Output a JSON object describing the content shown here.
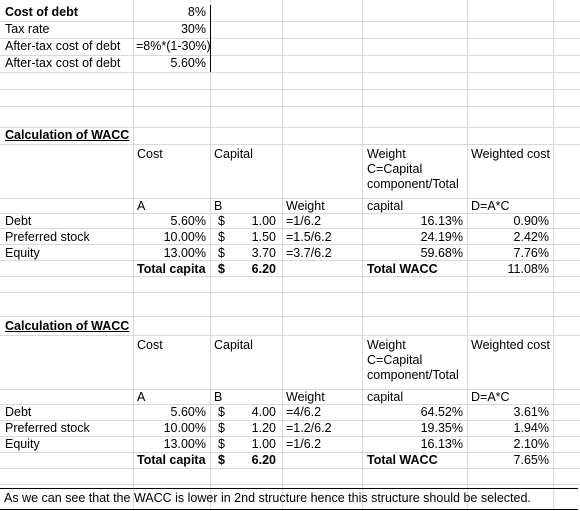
{
  "top": {
    "cost_of_debt_label": "Cost of debt",
    "cost_of_debt_value": "8%",
    "tax_rate_label": "Tax rate",
    "tax_rate_value": "30%",
    "after_tax_formula_label": "After-tax cost of debt",
    "after_tax_formula_value": "=8%*(1-30%)",
    "after_tax_label": "After-tax cost of debt",
    "after_tax_value": "5.60%"
  },
  "sections": [
    {
      "title": "Calculation of WACC",
      "h_cost": "Cost",
      "h_capital": "Capital",
      "h_weight1": "Weight",
      "h_weight2": "C=Capital",
      "h_weight3": "component/Total",
      "h_weight4": "capital",
      "h_weighted_cost": "Weighted cost",
      "h_a": "A",
      "h_b": "B",
      "h_weight_col": "Weight",
      "h_dac": "D=A*C",
      "rows": [
        {
          "label": "Debt",
          "cost": "5.60%",
          "cur": "$",
          "capital": "1.00",
          "formula": "=1/6.2",
          "weight": "16.13%",
          "wcost": "0.90%"
        },
        {
          "label": "Preferred stock",
          "cost": "10.00%",
          "cur": "$",
          "capital": "1.50",
          "formula": "=1.5/6.2",
          "weight": "24.19%",
          "wcost": "2.42%"
        },
        {
          "label": "Equity",
          "cost": "13.00%",
          "cur": "$",
          "capital": "3.70",
          "formula": "=3.7/6.2",
          "weight": "59.68%",
          "wcost": "7.76%"
        }
      ],
      "total_label": "Total capita",
      "total_cur": "$",
      "total_value": "6.20",
      "wacc_label": "Total WACC",
      "wacc_value": "11.08%"
    },
    {
      "title": "Calculation of WACC",
      "h_cost": "Cost",
      "h_capital": "Capital",
      "h_weight1": "Weight",
      "h_weight2": "C=Capital",
      "h_weight3": "component/Total",
      "h_weight4": "capital",
      "h_weighted_cost": "Weighted cost",
      "h_a": "A",
      "h_b": "B",
      "h_weight_col": "Weight",
      "h_dac": "D=A*C",
      "rows": [
        {
          "label": "Debt",
          "cost": "5.60%",
          "cur": "$",
          "capital": "4.00",
          "formula": "=4/6.2",
          "weight": "64.52%",
          "wcost": "3.61%"
        },
        {
          "label": "Preferred stock",
          "cost": "10.00%",
          "cur": "$",
          "capital": "1.20",
          "formula": "=1.2/6.2",
          "weight": "19.35%",
          "wcost": "1.94%"
        },
        {
          "label": "Equity",
          "cost": "13.00%",
          "cur": "$",
          "capital": "1.00",
          "formula": "=1/6.2",
          "weight": "16.13%",
          "wcost": "2.10%"
        }
      ],
      "total_label": "Total capita",
      "total_cur": "$",
      "total_value": "6.20",
      "wacc_label": "Total WACC",
      "wacc_value": "7.65%"
    }
  ],
  "conclusion": "As we can see that the WACC is lower in 2nd structure hence this structure should be selected."
}
